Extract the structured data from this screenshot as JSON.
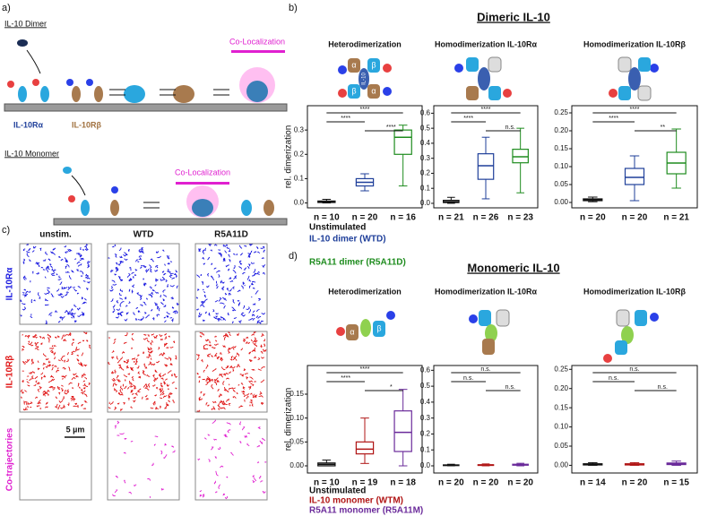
{
  "panel_a": {
    "label": "a)",
    "dimer_title": "IL-10 Dimer",
    "receptor_alpha": "IL-10Rα",
    "receptor_beta": "IL-10Rβ",
    "dimer_colocalization": "Co-Localization",
    "monomer_title": "IL-10 Monomer",
    "monomer_colocalization": "Co-Localization"
  },
  "panel_b": {
    "label": "b)",
    "title": "Dimeric IL-10",
    "legend": [
      "Unstimulated",
      "IL-10 dimer (WTD)",
      "R5A11 dimer (R5A11D)"
    ],
    "icon_labels": [
      "α",
      "β",
      "β",
      "α",
      "IL-10"
    ]
  },
  "panel_c": {
    "label": "c)",
    "columns": [
      "unstim.",
      "WTD",
      "R5A11D"
    ],
    "rows": [
      "IL-10Rα",
      "IL-10Rβ",
      "Co-trajectories"
    ],
    "scale_bar": "5 µm"
  },
  "panel_d": {
    "label": "d)",
    "title": "Monomeric IL-10",
    "legend": [
      "Unstimulated",
      "IL-10 monomer (WTM)",
      "R5A11 monomer (R5A11M)"
    ],
    "icon_labels": [
      "α",
      "β"
    ]
  },
  "chart_data": [
    {
      "type": "box",
      "title": "Heterodimerization",
      "y_label": "rel. dimerization",
      "ylim": [
        -0.02,
        0.4
      ],
      "yticks": [
        {
          "value": 0,
          "label": "0.0"
        },
        {
          "value": 0.1,
          "label": "0.1"
        },
        {
          "value": 0.2,
          "label": "0.2"
        },
        {
          "value": 0.3,
          "label": "0.3"
        }
      ],
      "significance": [
        "****",
        "****",
        "****"
      ],
      "n_labels": [
        "n = 10",
        "n = 20",
        "n = 16"
      ],
      "boxes": [
        {
          "color": "#111111",
          "min": 0,
          "q1": 0.002,
          "median": 0.005,
          "q3": 0.008,
          "max": 0.015
        },
        {
          "color": "#1f3f9a",
          "min": 0.05,
          "q1": 0.07,
          "median": 0.085,
          "q3": 0.1,
          "max": 0.12
        },
        {
          "color": "#1e8c1e",
          "min": 0.07,
          "q1": 0.2,
          "median": 0.27,
          "q3": 0.3,
          "max": 0.32
        }
      ]
    },
    {
      "type": "box",
      "title": "Homodimerization IL-10Rα",
      "ylim": [
        -0.03,
        0.65
      ],
      "yticks": [
        {
          "value": 0,
          "label": "0.0"
        },
        {
          "value": 0.1,
          "label": "0.1"
        },
        {
          "value": 0.2,
          "label": "0.2"
        },
        {
          "value": 0.3,
          "label": "0.3"
        },
        {
          "value": 0.4,
          "label": "0.4"
        },
        {
          "value": 0.5,
          "label": "0.5"
        },
        {
          "value": 0.6,
          "label": "0.6"
        }
      ],
      "significance": [
        "****",
        "****",
        "n.s."
      ],
      "n_labels": [
        "n = 21",
        "n = 26",
        "n = 23"
      ],
      "boxes": [
        {
          "color": "#111111",
          "min": 0,
          "q1": 0.005,
          "median": 0.01,
          "q3": 0.02,
          "max": 0.04
        },
        {
          "color": "#1f3f9a",
          "min": 0.03,
          "q1": 0.16,
          "median": 0.25,
          "q3": 0.33,
          "max": 0.44
        },
        {
          "color": "#1e8c1e",
          "min": 0.07,
          "q1": 0.27,
          "median": 0.31,
          "q3": 0.36,
          "max": 0.5
        }
      ]
    },
    {
      "type": "box",
      "title": "Homodimerization IL-10Rβ",
      "ylim": [
        -0.015,
        0.27
      ],
      "yticks": [
        {
          "value": 0,
          "label": "0.00"
        },
        {
          "value": 0.05,
          "label": "0.05"
        },
        {
          "value": 0.1,
          "label": "0.10"
        },
        {
          "value": 0.15,
          "label": "0.15"
        },
        {
          "value": 0.2,
          "label": "0.20"
        },
        {
          "value": 0.25,
          "label": "0.25"
        }
      ],
      "significance": [
        "****",
        "****",
        "**"
      ],
      "n_labels": [
        "n = 20",
        "n = 20",
        "n = 21"
      ],
      "boxes": [
        {
          "color": "#111111",
          "min": 0.002,
          "q1": 0.005,
          "median": 0.008,
          "q3": 0.01,
          "max": 0.015
        },
        {
          "color": "#1f3f9a",
          "min": 0.005,
          "q1": 0.05,
          "median": 0.07,
          "q3": 0.095,
          "max": 0.13
        },
        {
          "color": "#1e8c1e",
          "min": 0.04,
          "q1": 0.08,
          "median": 0.11,
          "q3": 0.14,
          "max": 0.205
        }
      ]
    },
    {
      "type": "box",
      "title": "Heterodimerization",
      "y_label": "rel. dimerization",
      "ylim": [
        -0.015,
        0.21
      ],
      "yticks": [
        {
          "value": 0,
          "label": "0.00"
        },
        {
          "value": 0.05,
          "label": "0.05"
        },
        {
          "value": 0.1,
          "label": "0.10"
        },
        {
          "value": 0.15,
          "label": "0.15"
        }
      ],
      "significance": [
        "****",
        "****",
        "*"
      ],
      "n_labels": [
        "n = 10",
        "n = 19",
        "n = 18"
      ],
      "boxes": [
        {
          "color": "#111111",
          "min": 0,
          "q1": 0,
          "median": 0.003,
          "q3": 0.006,
          "max": 0.012
        },
        {
          "color": "#b01515",
          "min": 0.005,
          "q1": 0.025,
          "median": 0.035,
          "q3": 0.05,
          "max": 0.1
        },
        {
          "color": "#6a2a9a",
          "min": 0,
          "q1": 0.03,
          "median": 0.07,
          "q3": 0.115,
          "max": 0.16
        }
      ]
    },
    {
      "type": "box",
      "title": "Homodimerization IL-10Rα",
      "ylim": [
        -0.045,
        0.63
      ],
      "yticks": [
        {
          "value": 0,
          "label": "0.0"
        },
        {
          "value": 0.1,
          "label": "0.1"
        },
        {
          "value": 0.2,
          "label": "0.2"
        },
        {
          "value": 0.3,
          "label": "0.3"
        },
        {
          "value": 0.4,
          "label": "0.4"
        },
        {
          "value": 0.5,
          "label": "0.5"
        },
        {
          "value": 0.6,
          "label": "0.6"
        }
      ],
      "significance": [
        "n.s.",
        "n.s.",
        "n.s."
      ],
      "n_labels": [
        "n = 20",
        "n = 20",
        "n = 20"
      ],
      "boxes": [
        {
          "color": "#111111",
          "min": 0,
          "q1": 0.002,
          "median": 0.004,
          "q3": 0.006,
          "max": 0.01
        },
        {
          "color": "#b01515",
          "min": 0,
          "q1": 0.003,
          "median": 0.005,
          "q3": 0.007,
          "max": 0.012
        },
        {
          "color": "#6a2a9a",
          "min": 0,
          "q1": 0.004,
          "median": 0.007,
          "q3": 0.01,
          "max": 0.016
        }
      ]
    },
    {
      "type": "box",
      "title": "Homodimerization IL-10Rβ",
      "ylim": [
        -0.02,
        0.26
      ],
      "yticks": [
        {
          "value": 0,
          "label": "0.00"
        },
        {
          "value": 0.05,
          "label": "0.05"
        },
        {
          "value": 0.1,
          "label": "0.10"
        },
        {
          "value": 0.15,
          "label": "0.15"
        },
        {
          "value": 0.2,
          "label": "0.20"
        },
        {
          "value": 0.25,
          "label": "0.25"
        }
      ],
      "significance": [
        "n.s.",
        "n.s.",
        "n.s."
      ],
      "n_labels": [
        "n = 14",
        "n = 20",
        "n = 15"
      ],
      "boxes": [
        {
          "color": "#111111",
          "min": 0,
          "q1": 0.001,
          "median": 0.003,
          "q3": 0.004,
          "max": 0.007
        },
        {
          "color": "#b01515",
          "min": 0,
          "q1": 0.001,
          "median": 0.003,
          "q3": 0.004,
          "max": 0.007
        },
        {
          "color": "#6a2a9a",
          "min": 0,
          "q1": 0.002,
          "median": 0.004,
          "q3": 0.006,
          "max": 0.011
        }
      ]
    }
  ]
}
